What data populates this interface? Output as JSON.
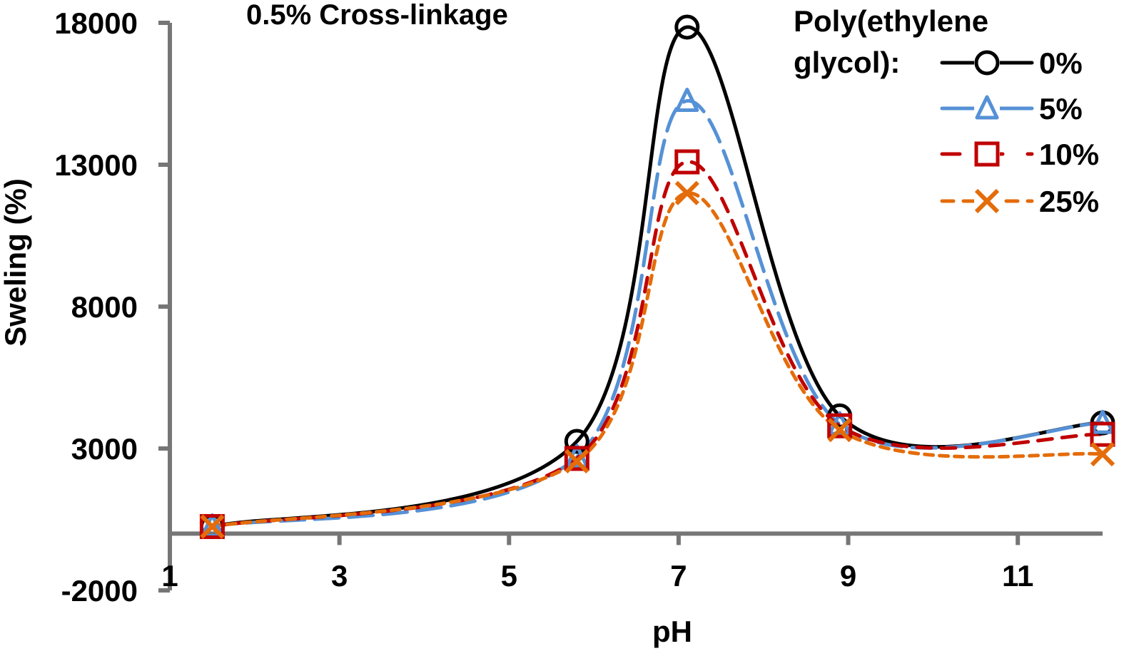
{
  "chart_data": {
    "type": "line",
    "title": "0.5% Cross-linkage",
    "xlabel": "pH",
    "ylabel": "Sweling (%)",
    "xlim": [
      1,
      12
    ],
    "ylim": [
      -2000,
      18000
    ],
    "x_ticks": [
      1,
      3,
      5,
      7,
      9,
      11
    ],
    "y_ticks": [
      -2000,
      3000,
      8000,
      13000,
      18000
    ],
    "x_ticks_labels": [
      "1",
      "3",
      "5",
      "7",
      "9",
      "11"
    ],
    "y_ticks_labels": [
      "-2000",
      "3000",
      "8000",
      "13000",
      "18000"
    ],
    "x_axis_crosses_y_at": 0,
    "grid": false,
    "smoothed": true,
    "legend": {
      "title_line1": "Poly(ethylene",
      "title_line2": "glycol):",
      "placement": "top-right"
    },
    "x": [
      1.5,
      5.8,
      7.1,
      8.9,
      12
    ],
    "series": [
      {
        "name": "0%",
        "color": "#000000",
        "marker": "circle",
        "dash": "solid",
        "values": [
          250,
          3250,
          17850,
          4150,
          3900
        ]
      },
      {
        "name": "5%",
        "color": "#5591D6",
        "marker": "triangle",
        "dash": "long-dash",
        "values": [
          250,
          2700,
          15250,
          3850,
          3900
        ]
      },
      {
        "name": "10%",
        "color": "#C00000",
        "marker": "square",
        "dash": "dash",
        "values": [
          250,
          2650,
          13100,
          3800,
          3500
        ]
      },
      {
        "name": "25%",
        "color": "#E46C0A",
        "marker": "x",
        "dash": "short-dash",
        "values": [
          250,
          2550,
          12000,
          3650,
          2800
        ]
      }
    ]
  }
}
